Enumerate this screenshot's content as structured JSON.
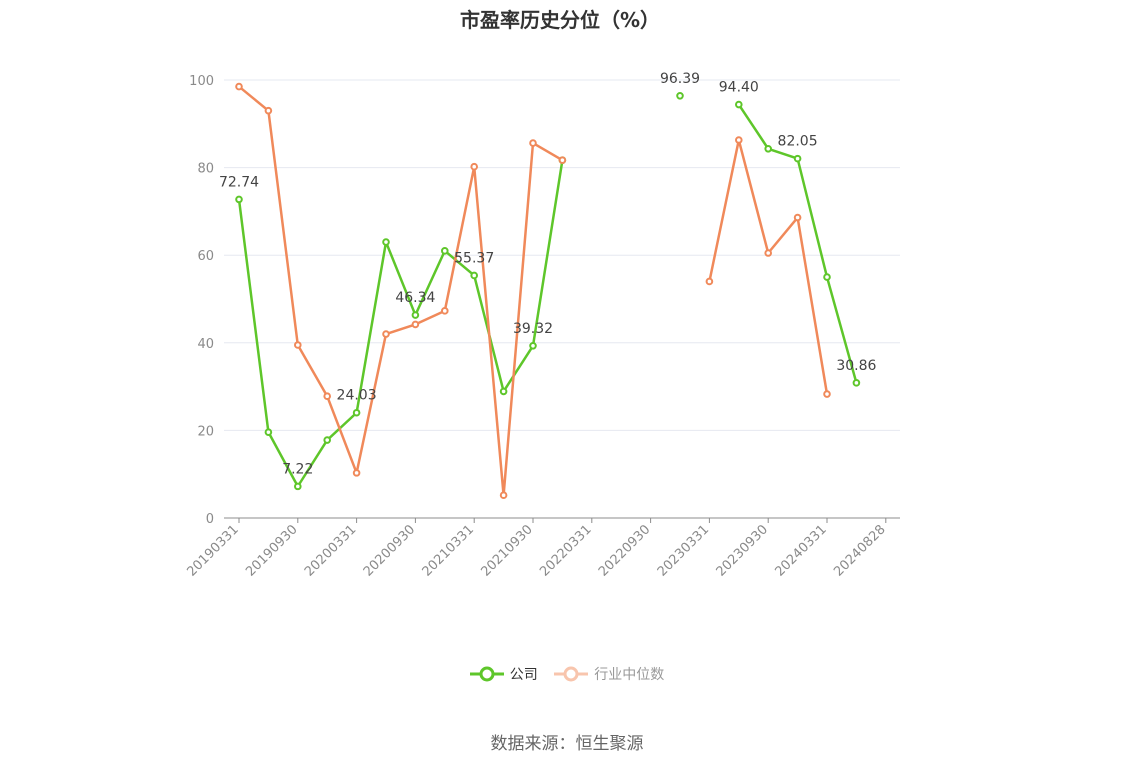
{
  "chart_data": {
    "type": "line",
    "title": "市盈率历史分位（%）",
    "source": "数据来源：恒生聚源",
    "ylim": [
      0,
      100
    ],
    "yticks": [
      0,
      20,
      40,
      60,
      80,
      100
    ],
    "x_tick_labels": [
      "20190331",
      "20190930",
      "20200331",
      "20200930",
      "20210331",
      "20210930",
      "20220331",
      "20220930",
      "20230331",
      "20230930",
      "20240331",
      "20240828"
    ],
    "legend_position": "bottom",
    "grid": true,
    "series": [
      {
        "name": "公司",
        "color": "#5ec62a",
        "values": [
          72.74,
          19.6,
          7.22,
          17.8,
          24.03,
          63.0,
          46.34,
          61.0,
          55.37,
          28.9,
          39.32,
          81.7,
          null,
          null,
          null,
          96.39,
          null,
          94.4,
          84.3,
          82.05,
          55.0,
          30.86
        ],
        "data_labels": {
          "0": "72.74",
          "2": "7.22",
          "4": "24.03",
          "6": "46.34",
          "8": "55.37",
          "10": "39.32",
          "15": "96.39",
          "17": "94.40",
          "19": "82.05",
          "21": "30.86"
        }
      },
      {
        "name": "行业中位数",
        "color": "#f0895a",
        "values": [
          98.5,
          93.0,
          39.5,
          27.8,
          10.3,
          42.0,
          44.2,
          47.3,
          80.2,
          5.2,
          85.6,
          81.7,
          null,
          null,
          null,
          null,
          54.0,
          86.3,
          60.5,
          68.6,
          28.3,
          null
        ]
      }
    ]
  }
}
